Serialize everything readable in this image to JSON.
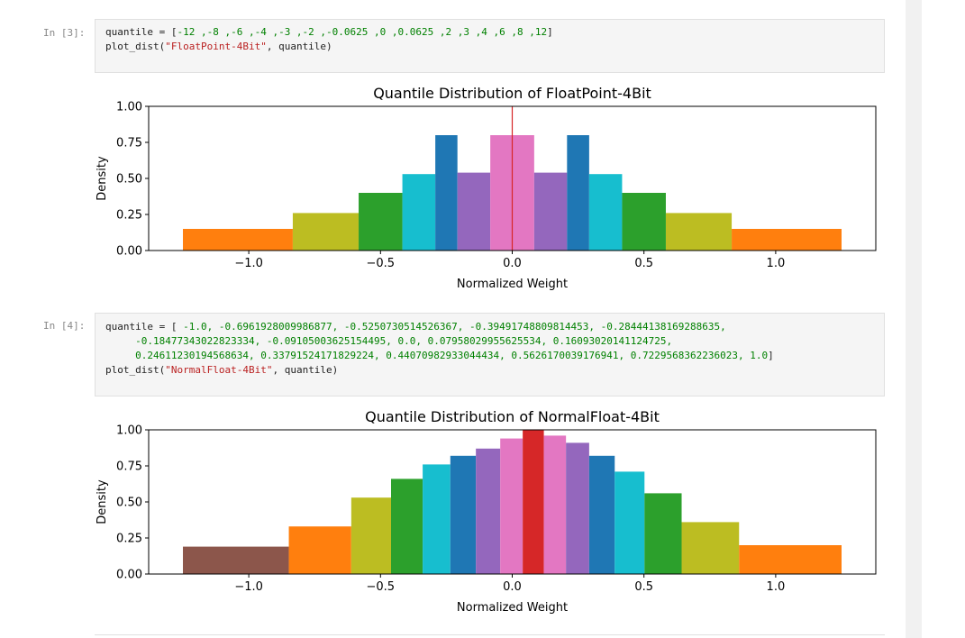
{
  "cells": [
    {
      "prompt": "In [3]:",
      "code": {
        "l1_a": "quantile = [",
        "l1_b": "-12 ,-8 ,-6 ,-4 ,-3 ,-2 ,-0.0625 ,0 ,0.0625 ,2 ,3 ,4 ,6 ,8 ,12",
        "l1_c": "]",
        "l2_a": "plot_dist(",
        "l2_b": "\"FloatPoint-4Bit\"",
        "l2_c": ", quantile)"
      }
    },
    {
      "prompt": "In [4]:",
      "code": {
        "l1_a": "quantile = [ ",
        "l1_b": "-1.0, -0.6961928009986877, -0.5250730514526367, -0.39491748809814453, -0.28444138169288635,",
        "l2_b": "-0.18477343022823334, -0.09105003625154495, 0.0, 0.07958029955625534, 0.16093020141124725,",
        "l3_b": "0.24611230194568634, 0.33791524171829224, 0.44070982933044434, 0.5626170039176941, 0.7229568362236023, 1.0",
        "l3_c": "]",
        "l4_a": "plot_dist(",
        "l4_b": "\"NormalFloat-4Bit\"",
        "l4_c": ", quantile)"
      }
    }
  ],
  "chart_data": [
    {
      "type": "bar",
      "title": "Quantile Distribution of FloatPoint-4Bit",
      "xlabel": "Normalized Weight",
      "ylabel": "Density",
      "xlim": [
        -1.38,
        1.38
      ],
      "ylim": [
        0,
        1.0
      ],
      "xticks": [
        -1.0,
        -0.5,
        0.0,
        0.5,
        1.0
      ],
      "xtick_labels": [
        "−1.0",
        "−0.5",
        "0.0",
        "0.5",
        "1.0"
      ],
      "yticks": [
        0,
        0.25,
        0.5,
        0.75,
        1.0
      ],
      "ytick_labels": [
        "0.00",
        "0.25",
        "0.50",
        "0.75",
        "1.00"
      ],
      "bins": [
        {
          "x0": -1.25,
          "x1": -0.833,
          "value": 0.15,
          "color": "#ff7f0e"
        },
        {
          "x0": -0.833,
          "x1": -0.583,
          "value": 0.26,
          "color": "#bcbd22"
        },
        {
          "x0": -0.583,
          "x1": -0.417,
          "value": 0.4,
          "color": "#2ca02c"
        },
        {
          "x0": -0.417,
          "x1": -0.292,
          "value": 0.53,
          "color": "#17becf"
        },
        {
          "x0": -0.292,
          "x1": -0.208,
          "value": 0.8,
          "color": "#1f77b4"
        },
        {
          "x0": -0.208,
          "x1": -0.0833,
          "value": 0.54,
          "color": "#9467bd"
        },
        {
          "x0": -0.0833,
          "x1": 0.0833,
          "value": 0.8,
          "color": "#e377c2"
        },
        {
          "x0": 0.0833,
          "x1": 0.208,
          "value": 0.54,
          "color": "#9467bd"
        },
        {
          "x0": 0.208,
          "x1": 0.292,
          "value": 0.8,
          "color": "#1f77b4"
        },
        {
          "x0": 0.292,
          "x1": 0.417,
          "value": 0.53,
          "color": "#17becf"
        },
        {
          "x0": 0.417,
          "x1": 0.583,
          "value": 0.4,
          "color": "#2ca02c"
        },
        {
          "x0": 0.583,
          "x1": 0.833,
          "value": 0.26,
          "color": "#bcbd22"
        },
        {
          "x0": 0.833,
          "x1": 1.25,
          "value": 0.15,
          "color": "#ff7f0e"
        }
      ],
      "vline": {
        "x": 0.0,
        "y0": 0,
        "y1": 1.0,
        "color": "#d62728"
      }
    },
    {
      "type": "bar",
      "title": "Quantile Distribution of NormalFloat-4Bit",
      "xlabel": "Normalized Weight",
      "ylabel": "Density",
      "xlim": [
        -1.38,
        1.38
      ],
      "ylim": [
        0,
        1.0
      ],
      "xticks": [
        -1.0,
        -0.5,
        0.0,
        0.5,
        1.0
      ],
      "xtick_labels": [
        "−1.0",
        "−0.5",
        "0.0",
        "0.5",
        "1.0"
      ],
      "yticks": [
        0,
        0.25,
        0.5,
        0.75,
        1.0
      ],
      "ytick_labels": [
        "0.00",
        "0.25",
        "0.50",
        "0.75",
        "1.00"
      ],
      "bins": [
        {
          "x0": -1.25,
          "x1": -0.848,
          "value": 0.19,
          "color": "#8c564b"
        },
        {
          "x0": -0.848,
          "x1": -0.611,
          "value": 0.33,
          "color": "#ff7f0e"
        },
        {
          "x0": -0.611,
          "x1": -0.46,
          "value": 0.53,
          "color": "#bcbd22"
        },
        {
          "x0": -0.46,
          "x1": -0.34,
          "value": 0.66,
          "color": "#2ca02c"
        },
        {
          "x0": -0.34,
          "x1": -0.235,
          "value": 0.76,
          "color": "#17becf"
        },
        {
          "x0": -0.235,
          "x1": -0.138,
          "value": 0.82,
          "color": "#1f77b4"
        },
        {
          "x0": -0.138,
          "x1": -0.0455,
          "value": 0.87,
          "color": "#9467bd"
        },
        {
          "x0": -0.0455,
          "x1": 0.0398,
          "value": 0.94,
          "color": "#e377c2"
        },
        {
          "x0": 0.0398,
          "x1": 0.12,
          "value": 1.0,
          "color": "#d62728"
        },
        {
          "x0": 0.12,
          "x1": 0.204,
          "value": 0.96,
          "color": "#e377c2"
        },
        {
          "x0": 0.204,
          "x1": 0.292,
          "value": 0.91,
          "color": "#9467bd"
        },
        {
          "x0": 0.292,
          "x1": 0.389,
          "value": 0.82,
          "color": "#1f77b4"
        },
        {
          "x0": 0.389,
          "x1": 0.502,
          "value": 0.71,
          "color": "#17becf"
        },
        {
          "x0": 0.502,
          "x1": 0.643,
          "value": 0.56,
          "color": "#2ca02c"
        },
        {
          "x0": 0.643,
          "x1": 0.861,
          "value": 0.36,
          "color": "#bcbd22"
        },
        {
          "x0": 0.861,
          "x1": 1.25,
          "value": 0.2,
          "color": "#ff7f0e"
        }
      ]
    }
  ]
}
